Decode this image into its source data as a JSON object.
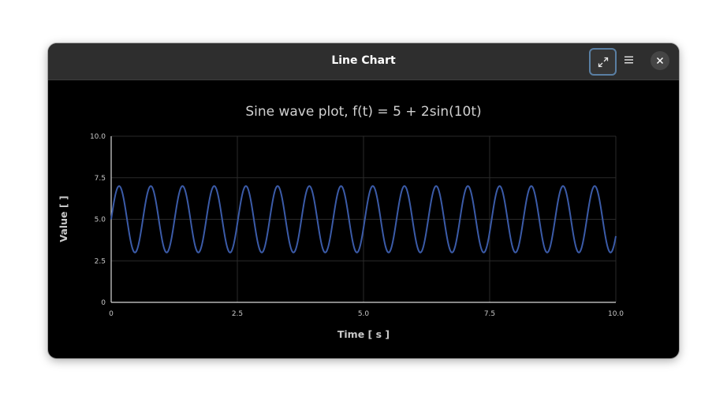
{
  "window": {
    "title": "Line Chart",
    "buttons": {
      "maximize_icon": "maximize-icon",
      "menu_icon": "hamburger-menu-icon",
      "close_icon": "close-icon"
    }
  },
  "colors": {
    "accent_border": "#5a7fa3",
    "series_line": "#3b5ba8",
    "background": "#000000",
    "titlebar": "#2e2e2e"
  },
  "chart_data": {
    "type": "line",
    "title": "Sine wave plot, f(t) = 5 + 2sin(10t)",
    "xlabel": "Time [ s ]",
    "ylabel": "Value [ ]",
    "xlim": [
      0,
      10
    ],
    "ylim": [
      0,
      10
    ],
    "x_ticks": [
      "0",
      "2.5",
      "5.0",
      "7.5",
      "10.0"
    ],
    "y_ticks": [
      "0",
      "2.5",
      "5.0",
      "7.5",
      "10.0"
    ],
    "grid": true,
    "legend": "none",
    "series": [
      {
        "function": "5 + 2*sin(10*t)",
        "x_start": 0,
        "x_end": 10,
        "samples": 1001
      }
    ]
  }
}
